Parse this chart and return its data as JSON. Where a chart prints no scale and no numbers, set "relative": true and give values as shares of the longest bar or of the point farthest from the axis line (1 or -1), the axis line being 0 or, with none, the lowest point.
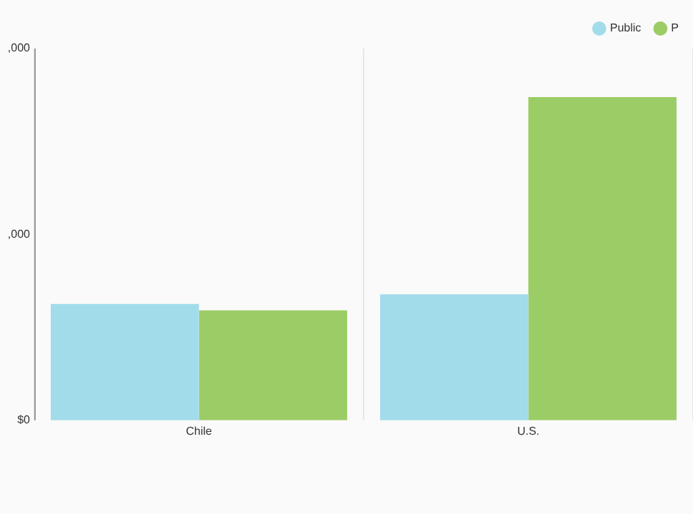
{
  "chart_data": {
    "type": "bar",
    "categories": [
      "Chile",
      "U.S."
    ],
    "series": [
      {
        "name": "Public",
        "color": "#a2dceb",
        "values": [
          0.36,
          0.39
        ]
      },
      {
        "name": "P",
        "color": "#9ccc66",
        "values": [
          0.34,
          1
        ]
      }
    ],
    "relative": true,
    "annotations": [
      ",000",
      ",000",
      "$0"
    ],
    "grid": "x",
    "legend": "top right"
  }
}
